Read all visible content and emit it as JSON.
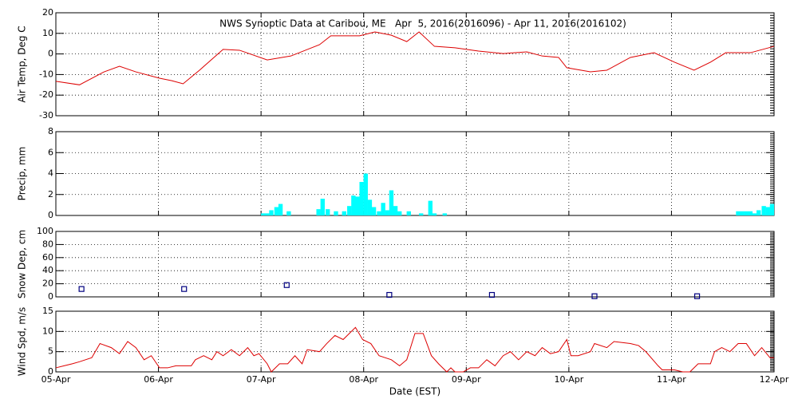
{
  "chart_data": [
    {
      "type": "line",
      "title": "NWS Synoptic Data at Caribou, ME   Apr  5, 2016(2016096) - Apr 11, 2016(2016102)",
      "ylabel": "Air Temp, Deg C",
      "x": [
        0,
        0.23,
        0.47,
        0.62,
        0.78,
        1.01,
        1.13,
        1.24,
        1.4,
        1.63,
        1.79,
        2.06,
        2.29,
        2.57,
        2.68,
        2.96,
        3.11,
        3.27,
        3.42,
        3.54,
        3.69,
        3.89,
        4.12,
        4.36,
        4.59,
        4.74,
        4.9,
        4.98,
        5.21,
        5.37,
        5.6,
        5.83,
        6.03,
        6.22,
        6.38,
        6.53,
        6.77,
        7.0
      ],
      "series": [
        {
          "name": "Air Temp",
          "color": "#dd0000",
          "values": [
            -13.3,
            -15,
            -8.7,
            -6,
            -8.7,
            -11.8,
            -13,
            -14.5,
            -7.9,
            2.2,
            1.8,
            -2.9,
            -1,
            4.5,
            8.8,
            8.8,
            10.7,
            9.1,
            6,
            10.7,
            3.7,
            3,
            1.4,
            0.2,
            1,
            -1,
            -1.7,
            -6.7,
            -8.7,
            -7.9,
            -1.7,
            0.6,
            -4,
            -7.9,
            -4,
            0.6,
            0.6,
            3.7
          ]
        }
      ],
      "xlim": [
        0,
        7
      ],
      "xticks": [
        0,
        1,
        2,
        3,
        4,
        5,
        6,
        7
      ],
      "ylim": [
        -30,
        20
      ],
      "yticks": [
        -30,
        -20,
        -10,
        0,
        10,
        20
      ],
      "grid": true
    },
    {
      "type": "bar",
      "ylabel": "Precip, mm",
      "x": [
        2.02,
        2.06,
        2.1,
        2.15,
        2.19,
        2.27,
        2.56,
        2.6,
        2.65,
        2.73,
        2.81,
        2.86,
        2.9,
        2.94,
        2.98,
        3.02,
        3.06,
        3.1,
        3.15,
        3.19,
        3.23,
        3.27,
        3.31,
        3.35,
        3.44,
        3.56,
        3.65,
        3.69,
        3.79,
        6.65,
        6.69,
        6.73,
        6.77,
        6.81,
        6.85,
        6.9,
        6.94,
        6.98
      ],
      "series": [
        {
          "name": "Precip",
          "color": "#00ffff",
          "values": [
            0.2,
            0.2,
            0.5,
            0.8,
            1.1,
            0.4,
            0.6,
            1.6,
            0.6,
            0.4,
            0.4,
            0.9,
            1.9,
            1.8,
            3.2,
            4.0,
            1.5,
            0.8,
            0.4,
            1.2,
            0.5,
            2.4,
            0.9,
            0.4,
            0.4,
            0.2,
            1.4,
            0.2,
            0.2,
            0.4,
            0.4,
            0.4,
            0.4,
            0.2,
            0.5,
            0.9,
            0.8,
            1.1
          ]
        }
      ],
      "xlim": [
        0,
        7
      ],
      "xticks": [
        0,
        1,
        2,
        3,
        4,
        5,
        6,
        7
      ],
      "ylim": [
        0,
        8
      ],
      "yticks": [
        0,
        2,
        4,
        6,
        8
      ],
      "grid": true
    },
    {
      "type": "scatter",
      "ylabel": "Snow Dep, cm",
      "x": [
        0.25,
        1.25,
        2.25,
        3.25,
        4.25,
        5.25,
        6.25
      ],
      "series": [
        {
          "name": "Snow Depth",
          "color": "#000080",
          "values": [
            12,
            12,
            18,
            3,
            3,
            1,
            1
          ]
        }
      ],
      "xlim": [
        0,
        7
      ],
      "xticks": [
        0,
        1,
        2,
        3,
        4,
        5,
        6,
        7
      ],
      "ylim": [
        0,
        100
      ],
      "yticks": [
        0,
        20,
        40,
        60,
        80,
        100
      ],
      "grid": true
    },
    {
      "type": "line",
      "ylabel": "Wind Spd, m/s",
      "xlabel": "Date (EST)",
      "x": [
        0,
        0.08,
        0.16,
        0.23,
        0.35,
        0.43,
        0.54,
        0.62,
        0.7,
        0.78,
        0.86,
        0.93,
        1.01,
        1.09,
        1.17,
        1.32,
        1.36,
        1.44,
        1.52,
        1.57,
        1.63,
        1.71,
        1.79,
        1.87,
        1.93,
        1.98,
        2.06,
        2.1,
        2.18,
        2.26,
        2.33,
        2.4,
        2.45,
        2.57,
        2.64,
        2.72,
        2.8,
        2.88,
        2.92,
        2.99,
        3.07,
        3.15,
        3.27,
        3.35,
        3.42,
        3.5,
        3.58,
        3.66,
        3.73,
        3.81,
        3.85,
        3.89,
        3.97,
        4.04,
        4.12,
        4.2,
        4.28,
        4.36,
        4.43,
        4.51,
        4.59,
        4.67,
        4.74,
        4.82,
        4.9,
        4.98,
        5.02,
        5.09,
        5.21,
        5.25,
        5.37,
        5.44,
        5.6,
        5.68,
        5.75,
        5.87,
        5.91,
        6.03,
        6.11,
        6.18,
        6.26,
        6.38,
        6.42,
        6.49,
        6.57,
        6.65,
        6.73,
        6.81,
        6.88,
        6.96,
        7.0
      ],
      "series": [
        {
          "name": "Wind Speed",
          "color": "#dd0000",
          "values": [
            1,
            1.5,
            2,
            2.5,
            3.5,
            7,
            6,
            4.5,
            7.5,
            6,
            3,
            4,
            1,
            1,
            1.5,
            1.5,
            3,
            4,
            3,
            5,
            4,
            5.5,
            4,
            6,
            4,
            4.5,
            2,
            0,
            2,
            2,
            4,
            2,
            5.5,
            5,
            7,
            9,
            8,
            10,
            11,
            8,
            7,
            4,
            3,
            1.5,
            3,
            9.5,
            9.5,
            4,
            2,
            0,
            1,
            0,
            0,
            1,
            1,
            3,
            1.5,
            4,
            5,
            3,
            5,
            4,
            6,
            4.5,
            5,
            8,
            4,
            4,
            5,
            7,
            6,
            7.5,
            7,
            6.5,
            5,
            1.5,
            0.5,
            0.5,
            0,
            0,
            2,
            2,
            5,
            6,
            5,
            7,
            7,
            4,
            6,
            3.5,
            3.5
          ]
        }
      ],
      "xlim": [
        0,
        7
      ],
      "xticks": [
        {
          "value": 0,
          "label": "05-Apr"
        },
        {
          "value": 1,
          "label": "06-Apr"
        },
        {
          "value": 2,
          "label": "07-Apr"
        },
        {
          "value": 3,
          "label": "08-Apr"
        },
        {
          "value": 4,
          "label": "09-Apr"
        },
        {
          "value": 5,
          "label": "10-Apr"
        },
        {
          "value": 6,
          "label": "11-Apr"
        },
        {
          "value": 7,
          "label": "12-Apr"
        }
      ],
      "ylim": [
        0,
        15
      ],
      "yticks": [
        0,
        5,
        10,
        15
      ],
      "grid": true
    }
  ]
}
